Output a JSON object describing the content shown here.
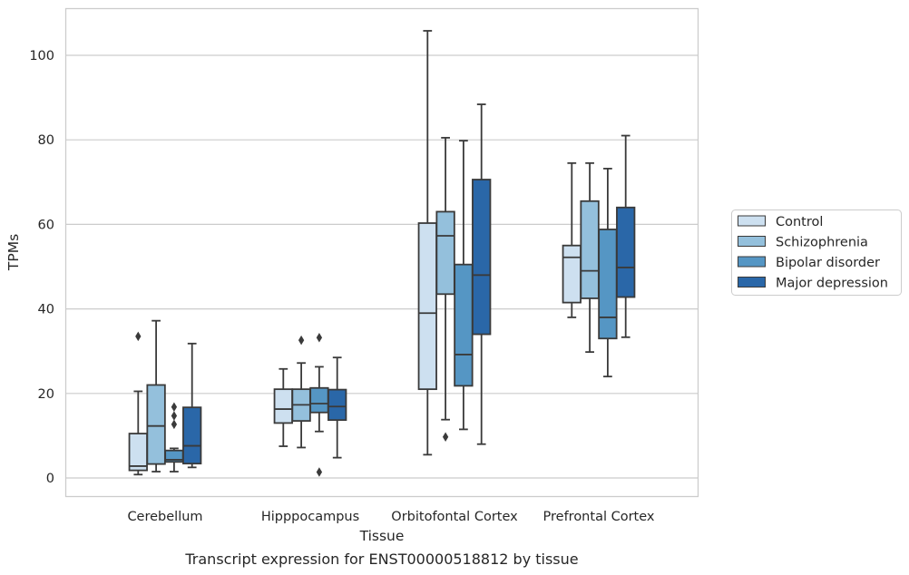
{
  "caption": "Transcript expression for ENST00000518812 by tissue",
  "chart_data": {
    "type": "box",
    "xlabel": "Tissue",
    "ylabel": "TPMs",
    "ylim": [
      -4.5,
      111
    ],
    "yticks": [
      0,
      20,
      40,
      60,
      80,
      100
    ],
    "grid": "horizontal",
    "legend_position": "right",
    "categories": [
      "Cerebellum",
      "Hipppocampus",
      "Orbitofontal Cortex",
      "Prefrontal Cortex"
    ],
    "series": [
      {
        "name": "Control",
        "color": "#cde0f0",
        "boxes": [
          {
            "whislo": 0.8,
            "q1": 1.8,
            "med": 2.8,
            "q3": 10.5,
            "whishi": 20.5,
            "fliers": [
              33.5
            ]
          },
          {
            "whislo": 7.5,
            "q1": 13.0,
            "med": 16.3,
            "q3": 21.0,
            "whishi": 25.8,
            "fliers": []
          },
          {
            "whislo": 5.5,
            "q1": 21.0,
            "med": 39.0,
            "q3": 60.3,
            "whishi": 105.8,
            "fliers": []
          },
          {
            "whislo": 38.0,
            "q1": 41.5,
            "med": 52.2,
            "q3": 55.0,
            "whishi": 74.5,
            "fliers": []
          }
        ]
      },
      {
        "name": "Schizophrenia",
        "color": "#94c0dc",
        "boxes": [
          {
            "whislo": 1.5,
            "q1": 3.3,
            "med": 12.3,
            "q3": 22.0,
            "whishi": 37.2,
            "fliers": []
          },
          {
            "whislo": 7.2,
            "q1": 13.5,
            "med": 17.3,
            "q3": 21.0,
            "whishi": 27.2,
            "fliers": [
              32.6
            ]
          },
          {
            "whislo": 13.8,
            "q1": 43.5,
            "med": 57.3,
            "q3": 63.0,
            "whishi": 80.5,
            "fliers": [
              9.7
            ]
          },
          {
            "whislo": 29.8,
            "q1": 42.5,
            "med": 49.0,
            "q3": 65.5,
            "whishi": 74.5,
            "fliers": []
          }
        ]
      },
      {
        "name": "Bipolar disorder",
        "color": "#5596c4",
        "boxes": [
          {
            "whislo": 1.5,
            "q1": 3.8,
            "med": 4.3,
            "q3": 6.5,
            "whishi": 7.0,
            "fliers": [
              12.7,
              14.7,
              16.8
            ]
          },
          {
            "whislo": 11.0,
            "q1": 15.5,
            "med": 17.6,
            "q3": 21.3,
            "whishi": 26.3,
            "fliers": [
              1.4,
              33.2
            ]
          },
          {
            "whislo": 11.5,
            "q1": 21.8,
            "med": 29.2,
            "q3": 50.5,
            "whishi": 79.8,
            "fliers": []
          },
          {
            "whislo": 24.0,
            "q1": 33.0,
            "med": 38.0,
            "q3": 58.8,
            "whishi": 73.2,
            "fliers": []
          }
        ]
      },
      {
        "name": "Major depression",
        "color": "#2a67a8",
        "boxes": [
          {
            "whislo": 2.5,
            "q1": 3.4,
            "med": 7.6,
            "q3": 16.7,
            "whishi": 31.8,
            "fliers": []
          },
          {
            "whislo": 4.8,
            "q1": 13.7,
            "med": 16.9,
            "q3": 20.9,
            "whishi": 28.5,
            "fliers": []
          },
          {
            "whislo": 8.0,
            "q1": 34.0,
            "med": 48.0,
            "q3": 70.6,
            "whishi": 88.4,
            "fliers": []
          },
          {
            "whislo": 33.3,
            "q1": 42.8,
            "med": 49.8,
            "q3": 64.0,
            "whishi": 81.0,
            "fliers": []
          }
        ]
      }
    ]
  }
}
